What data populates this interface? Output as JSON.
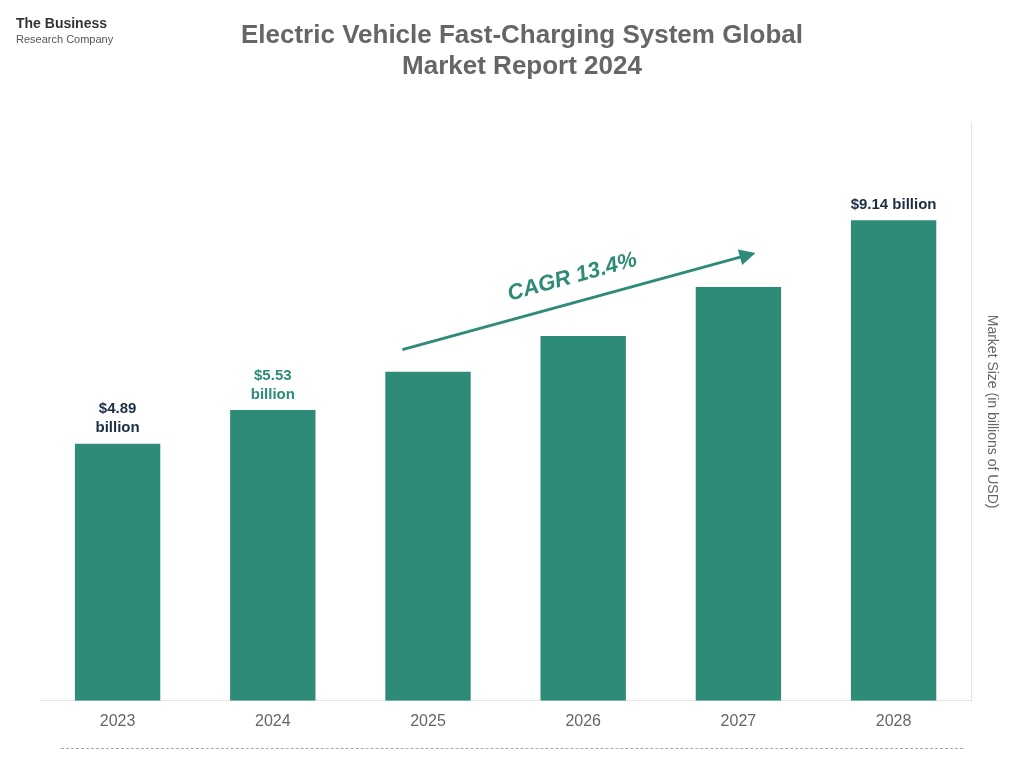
{
  "chart_data": {
    "type": "bar",
    "title": "Electric Vehicle Fast-Charging System Global\nMarket Report 2024",
    "categories": [
      "2023",
      "2024",
      "2025",
      "2026",
      "2027",
      "2028"
    ],
    "values": [
      4.89,
      5.53,
      6.26,
      6.94,
      7.87,
      9.14
    ],
    "color": "#2d8b78",
    "ylabel": "Market Size (in billions of USD)",
    "ylim": [
      0,
      11
    ],
    "grid": false,
    "tick_labels": "x",
    "annotations": [
      {
        "text": "$4.89\nbillion",
        "x": "2023",
        "color": "#1a2e44"
      },
      {
        "text": "$5.53\nbillion",
        "x": "2024",
        "color": "#2d8b78"
      },
      {
        "text": "$9.14 billion",
        "x": "2028",
        "color": "#1a2e44"
      },
      {
        "text": "CAGR 13.4%",
        "x": [
          "2025",
          "2027"
        ],
        "color": "#2d8b78"
      },
      {
        "text": "The Business",
        "color": "#333333"
      },
      {
        "text": "Research Company",
        "color": "#555555"
      }
    ]
  }
}
